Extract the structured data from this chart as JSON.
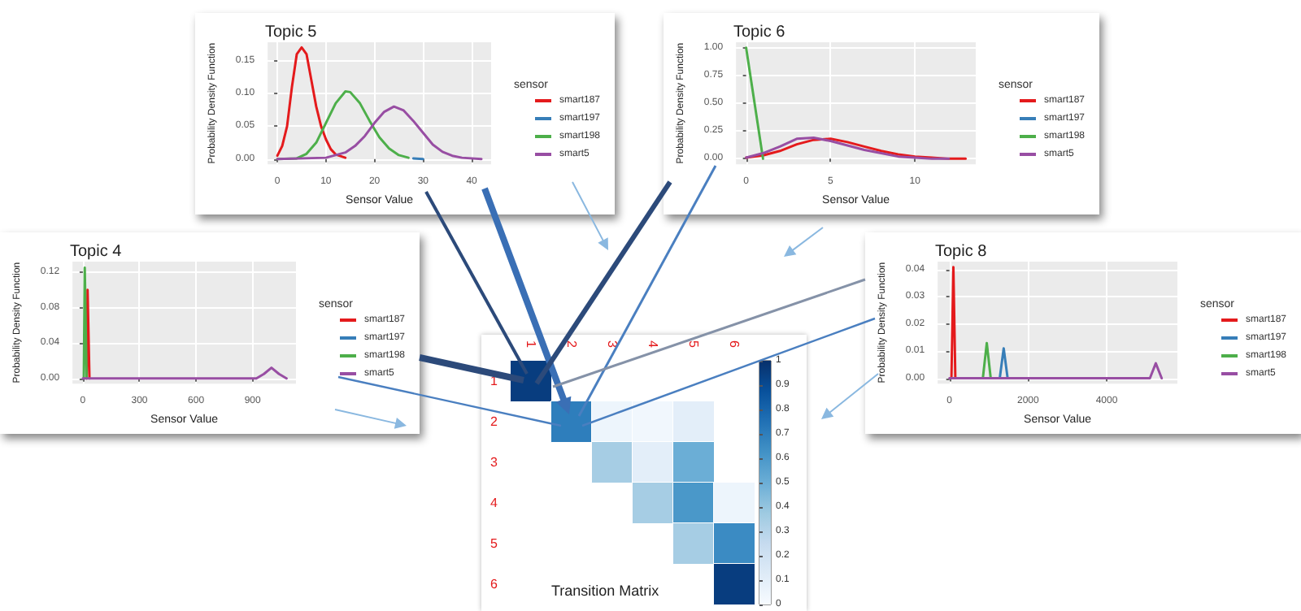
{
  "chart_data": [
    {
      "type": "line",
      "title": "Topic 5",
      "xlabel": "Sensor Value",
      "ylabel": "Probability Density Function",
      "legend_title": "sensor",
      "legend": "right",
      "grid": true,
      "xlim": [
        -2,
        44
      ],
      "ylim": [
        -0.008,
        0.178
      ],
      "xticks": [
        0,
        10,
        20,
        30,
        40
      ],
      "yticks": [
        {
          "value": 0,
          "label": "0.00"
        },
        {
          "value": 0.05,
          "label": "0.05"
        },
        {
          "value": 0.1,
          "label": "0.10"
        },
        {
          "value": 0.15,
          "label": "0.15"
        }
      ],
      "series": [
        {
          "name": "smart187",
          "color": "#e41a1c",
          "x": [
            0,
            1,
            2,
            3,
            4,
            5,
            6,
            7,
            8,
            9,
            10,
            11,
            12,
            14
          ],
          "values": [
            0.005,
            0.02,
            0.05,
            0.11,
            0.16,
            0.17,
            0.16,
            0.12,
            0.08,
            0.05,
            0.03,
            0.015,
            0.007,
            0.002
          ]
        },
        {
          "name": "smart197",
          "color": "#377eb8",
          "x": [
            28,
            30
          ],
          "values": [
            0.001,
            0
          ]
        },
        {
          "name": "smart198",
          "color": "#4daf4a",
          "x": [
            0,
            4,
            6,
            8,
            10,
            12,
            14,
            15,
            17,
            19,
            21,
            23,
            25,
            27
          ],
          "values": [
            0,
            0.001,
            0.008,
            0.025,
            0.055,
            0.085,
            0.103,
            0.102,
            0.085,
            0.058,
            0.033,
            0.016,
            0.006,
            0.002
          ]
        },
        {
          "name": "smart5",
          "color": "#984ea3",
          "x": [
            0,
            10,
            14,
            16,
            18,
            20,
            22,
            24,
            26,
            28,
            30,
            32,
            34,
            36,
            38,
            42
          ],
          "values": [
            0,
            0.002,
            0.01,
            0.02,
            0.035,
            0.055,
            0.072,
            0.08,
            0.074,
            0.058,
            0.04,
            0.022,
            0.011,
            0.005,
            0.002,
            0
          ]
        }
      ]
    },
    {
      "type": "line",
      "title": "Topic 6",
      "xlabel": "Sensor Value",
      "ylabel": "Probability Density Function",
      "legend_title": "sensor",
      "legend": "right",
      "grid": true,
      "xlim": [
        -0.6,
        13.6
      ],
      "ylim": [
        -0.05,
        1.05
      ],
      "xticks": [
        0,
        5,
        10
      ],
      "yticks": [
        {
          "value": 0,
          "label": "0.00"
        },
        {
          "value": 0.25,
          "label": "0.25"
        },
        {
          "value": 0.5,
          "label": "0.50"
        },
        {
          "value": 0.75,
          "label": "0.75"
        },
        {
          "value": 1,
          "label": "1.00"
        }
      ],
      "series": [
        {
          "name": "smart187",
          "color": "#e41a1c",
          "x": [
            0,
            1,
            2,
            3,
            4,
            5,
            6,
            7,
            8,
            9,
            10,
            11,
            12,
            13
          ],
          "values": [
            0.01,
            0.03,
            0.07,
            0.13,
            0.17,
            0.18,
            0.15,
            0.11,
            0.07,
            0.04,
            0.02,
            0.01,
            0,
            0
          ]
        },
        {
          "name": "smart197",
          "color": "#377eb8"
        },
        {
          "name": "smart198",
          "color": "#4daf4a",
          "x": [
            0,
            1
          ],
          "values": [
            1,
            0
          ]
        },
        {
          "name": "smart5",
          "color": "#984ea3",
          "x": [
            0,
            1,
            2,
            3,
            4,
            5,
            6,
            7,
            8,
            9,
            10,
            11,
            12
          ],
          "values": [
            0.01,
            0.05,
            0.11,
            0.18,
            0.19,
            0.16,
            0.12,
            0.08,
            0.05,
            0.02,
            0.01,
            0,
            0
          ]
        }
      ]
    },
    {
      "type": "line",
      "title": "Topic 4",
      "xlabel": "Sensor Value",
      "ylabel": "Probability Density Function",
      "legend_title": "sensor",
      "legend": "right",
      "grid": true,
      "xlim": [
        -55,
        1130
      ],
      "ylim": [
        -0.006,
        0.132
      ],
      "xticks": [
        0,
        300,
        600,
        900
      ],
      "yticks": [
        {
          "value": 0,
          "label": "0.00"
        },
        {
          "value": 0.04,
          "label": "0.04"
        },
        {
          "value": 0.08,
          "label": "0.08"
        },
        {
          "value": 0.12,
          "label": "0.12"
        }
      ],
      "series": [
        {
          "name": "smart187",
          "color": "#e41a1c",
          "x": [
            20,
            25,
            30,
            35
          ],
          "values": [
            0,
            0.1,
            0.1,
            0
          ]
        },
        {
          "name": "smart197",
          "color": "#377eb8"
        },
        {
          "name": "smart198",
          "color": "#4daf4a",
          "x": [
            5,
            10,
            15,
            20
          ],
          "values": [
            0,
            0.125,
            0.125,
            0
          ]
        },
        {
          "name": "smart5",
          "color": "#984ea3",
          "x": [
            0,
            920,
            960,
            1000,
            1040,
            1080
          ],
          "values": [
            0,
            0,
            0.005,
            0.012,
            0.005,
            0
          ]
        }
      ]
    },
    {
      "type": "line",
      "title": "Topic 8",
      "xlabel": "Sensor Value",
      "ylabel": "Probability Density Function",
      "legend_title": "sensor",
      "legend": "right",
      "grid": true,
      "xlim": [
        -300,
        5800
      ],
      "ylim": [
        -0.002,
        0.043
      ],
      "xticks": [
        0,
        2000,
        4000
      ],
      "yticks": [
        {
          "value": 0,
          "label": "0.00"
        },
        {
          "value": 0.01,
          "label": "0.01"
        },
        {
          "value": 0.02,
          "label": "0.02"
        },
        {
          "value": 0.03,
          "label": "0.03"
        },
        {
          "value": 0.04,
          "label": "0.04"
        }
      ],
      "series": [
        {
          "name": "smart187",
          "color": "#e41a1c",
          "x": [
            50,
            100,
            150
          ],
          "values": [
            0,
            0.041,
            0
          ]
        },
        {
          "name": "smart197",
          "color": "#377eb8",
          "x": [
            1280,
            1380,
            1480
          ],
          "values": [
            0,
            0.011,
            0
          ]
        },
        {
          "name": "smart198",
          "color": "#4daf4a",
          "x": [
            850,
            950,
            1050
          ],
          "values": [
            0,
            0.013,
            0
          ]
        },
        {
          "name": "smart5",
          "color": "#984ea3",
          "x": [
            0,
            5100,
            5250,
            5400
          ],
          "values": [
            0,
            0,
            0.0055,
            0
          ]
        }
      ]
    },
    {
      "type": "heatmap",
      "title": "Transition Matrix",
      "categories": [
        "1",
        "2",
        "3",
        "4",
        "5",
        "6"
      ],
      "y_categories": [
        "1",
        "2",
        "3",
        "4",
        "5",
        "6"
      ],
      "clim": [
        0,
        1
      ],
      "cticks": [
        0,
        0.1,
        0.2,
        0.3,
        0.4,
        0.5,
        0.6,
        0.7,
        0.8,
        0.9,
        1
      ],
      "cells": [
        [
          0.95,
          null,
          null,
          null,
          null,
          null
        ],
        [
          null,
          0.7,
          0.05,
          0.03,
          0.1,
          null
        ],
        [
          null,
          null,
          0.35,
          0.1,
          0.5,
          null
        ],
        [
          null,
          null,
          null,
          0.35,
          0.6,
          0.05
        ],
        [
          null,
          null,
          null,
          null,
          0.35,
          0.65
        ],
        [
          null,
          null,
          null,
          null,
          null,
          0.95
        ]
      ]
    }
  ]
}
